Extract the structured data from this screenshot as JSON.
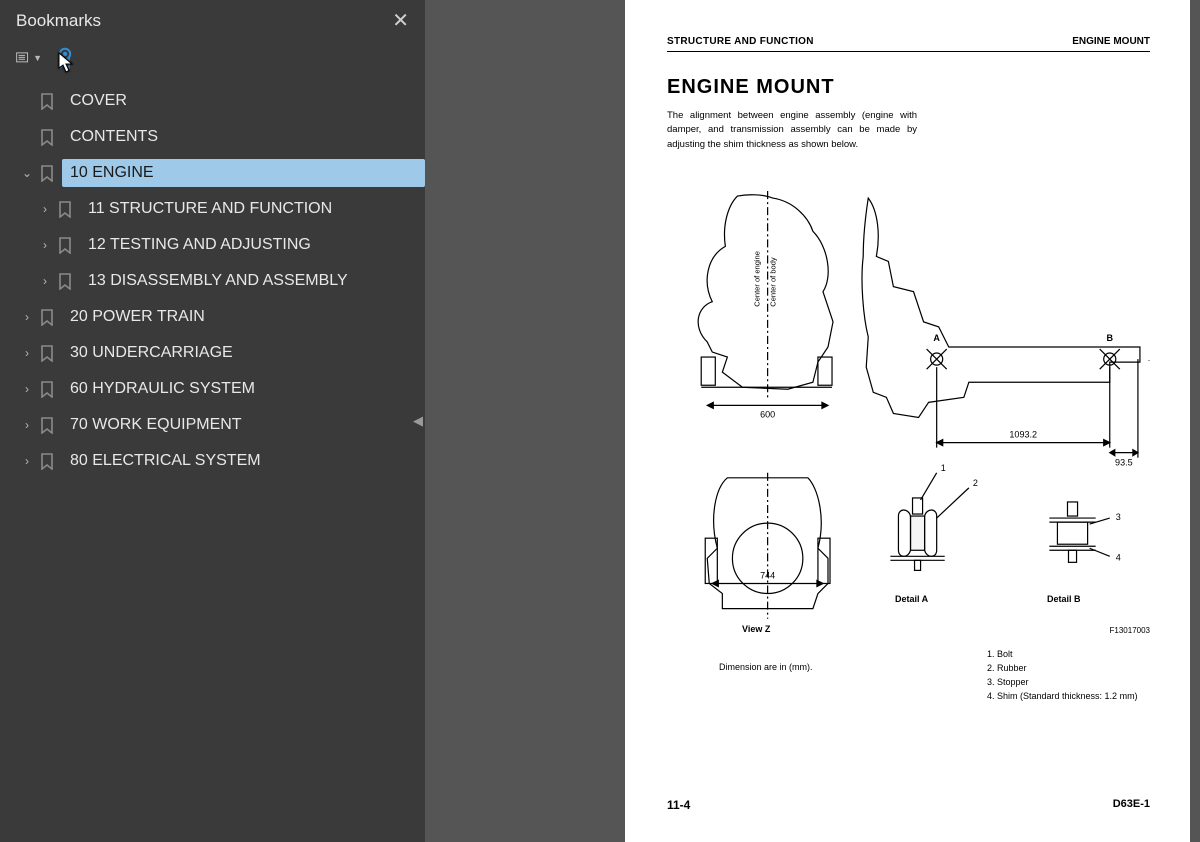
{
  "colors": {
    "app_bg": "#1a1a1a",
    "sidebar_bg": "#3a3a3a",
    "sidebar_text": "#e8e8e8",
    "selected_bg": "#9fc9e8",
    "viewer_bg": "#555555",
    "page_bg": "#ffffff",
    "accent_blue": "#2f8fd6"
  },
  "sidebar": {
    "title": "Bookmarks",
    "items": [
      {
        "label": "COVER",
        "level": 0,
        "expand": null,
        "selected": false
      },
      {
        "label": "CONTENTS",
        "level": 0,
        "expand": null,
        "selected": false
      },
      {
        "label": "10 ENGINE",
        "level": 0,
        "expand": "open",
        "selected": true
      },
      {
        "label": "11 STRUCTURE AND FUNCTION",
        "level": 1,
        "expand": "closed",
        "selected": false
      },
      {
        "label": "12 TESTING AND ADJUSTING",
        "level": 1,
        "expand": "closed",
        "selected": false
      },
      {
        "label": "13 DISASSEMBLY AND ASSEMBLY",
        "level": 1,
        "expand": "closed",
        "selected": false
      },
      {
        "label": "20 POWER TRAIN",
        "level": 0,
        "expand": "closed",
        "selected": false
      },
      {
        "label": "30 UNDERCARRIAGE",
        "level": 0,
        "expand": "closed",
        "selected": false
      },
      {
        "label": "60 HYDRAULIC SYSTEM",
        "level": 0,
        "expand": "closed",
        "selected": false
      },
      {
        "label": "70 WORK EQUIPMENT",
        "level": 0,
        "expand": "closed",
        "selected": false
      },
      {
        "label": "80 ELECTRICAL SYSTEM",
        "level": 0,
        "expand": "closed",
        "selected": false
      }
    ]
  },
  "page": {
    "header_left": "STRUCTURE AND FUNCTION",
    "header_right": "ENGINE MOUNT",
    "title": "ENGINE MOUNT",
    "description": "The alignment between engine assembly (engine with damper, and transmission assembly can be made by adjusting the shim thickness as shown below.",
    "diagram": {
      "dim_600": "600",
      "dim_744": "744",
      "dim_1093_2": "1093.2",
      "dim_93_5": "93.5",
      "vert_label_top": "Center of engine",
      "vert_label_bottom": "Center of body",
      "marker_A": "A",
      "marker_B": "B",
      "marker_Z": "→Z",
      "view_z": "View Z",
      "detail_a": "Detail A",
      "detail_b": "Detail B",
      "fig_code": "F13017003",
      "callout_1": "1",
      "callout_2": "2",
      "callout_3": "3",
      "callout_4": "4"
    },
    "dimension_note": "Dimension are in (mm).",
    "parts": {
      "p1": "1. Bolt",
      "p2": "2. Rubber",
      "p3": "3. Stopper",
      "p4": "4. Shim (Standard thickness: 1.2 mm)"
    },
    "footer_left": "11-4",
    "footer_right": "D63E-1"
  }
}
